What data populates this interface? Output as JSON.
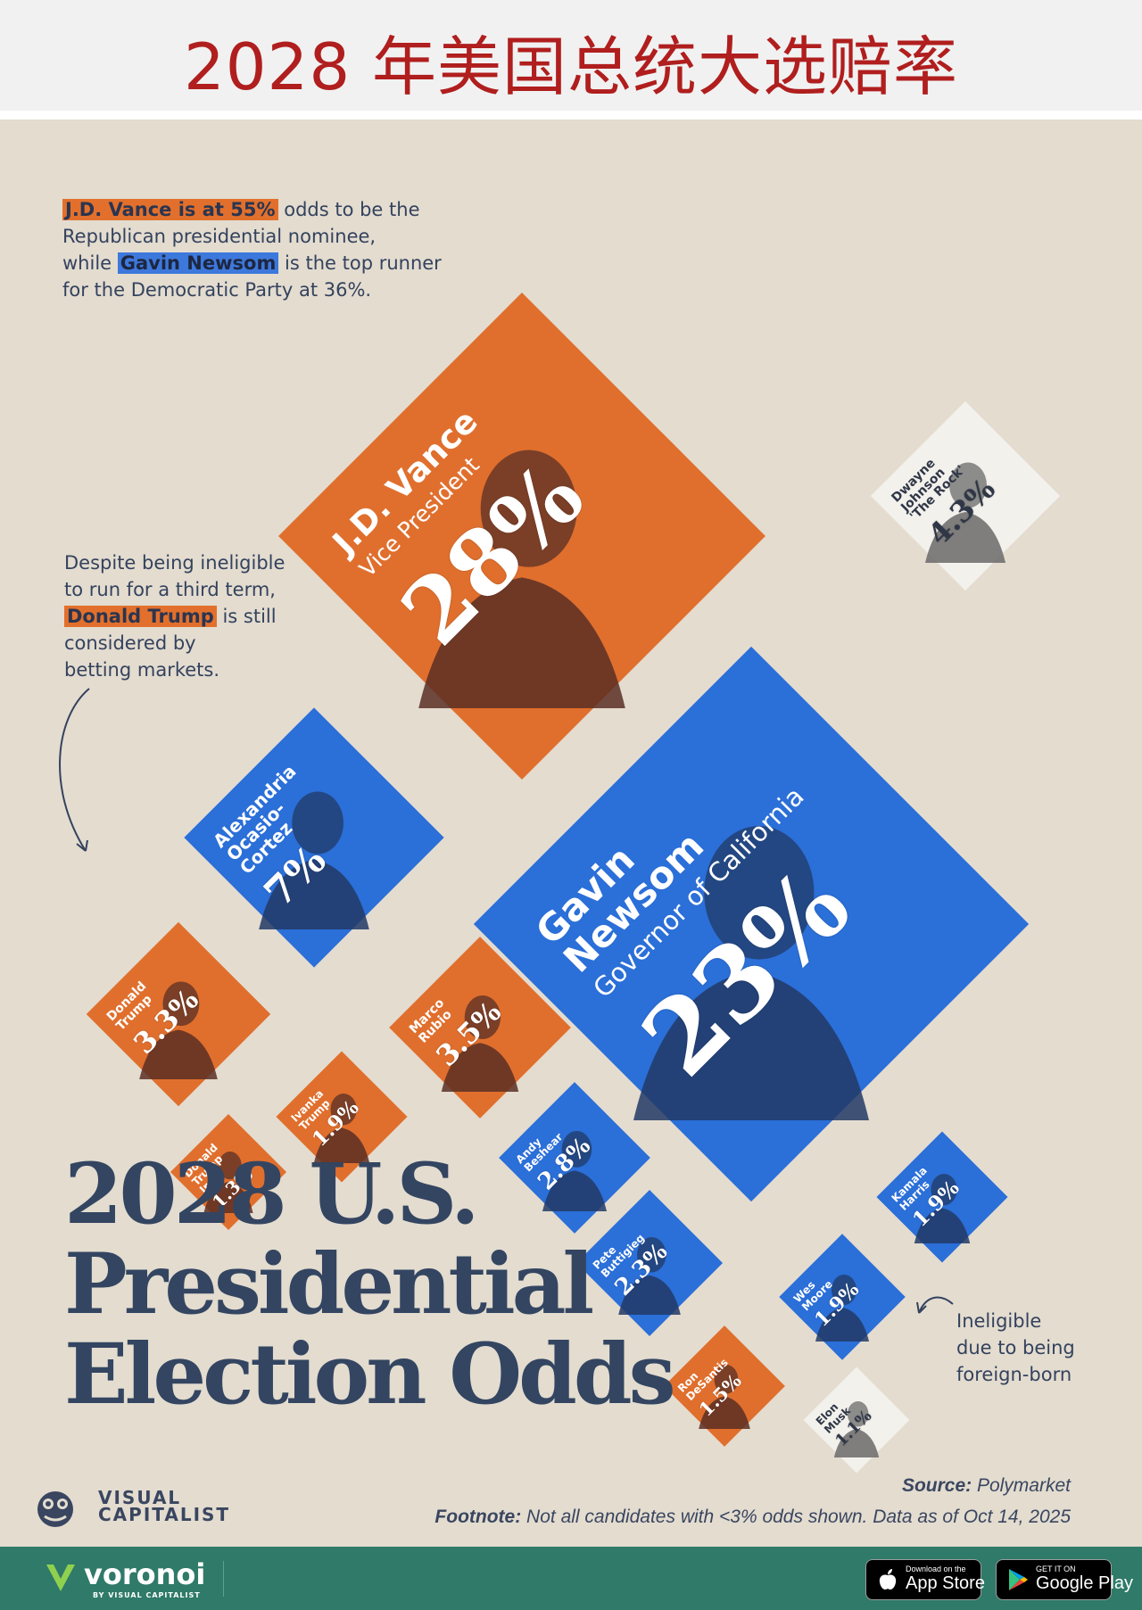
{
  "header": {
    "title": "2028 年美国总统大选赔率"
  },
  "notes": {
    "vance_note": {
      "hl": "J.D. Vance is at 55%",
      "rest1": " odds to be the",
      "line2": "Republican presidential nominee,",
      "pre3": "while ",
      "hl2": "Gavin Newsom",
      "rest3": " is the top runner",
      "line4": "for the Democratic Party at 36%."
    },
    "trump_note": {
      "line1": "Despite being ineligible",
      "line2": "to run for a third term,",
      "hl": "Donald Trump",
      "rest3": " is still",
      "line4": "considered by",
      "line5": "betting markets."
    },
    "musk_note": {
      "line1": "Ineligible",
      "line2": "due to being",
      "line3": "foreign-born"
    }
  },
  "chart_data": {
    "type": "treemap",
    "title": "2028 U.S. Presidential Election Odds",
    "title_lines": [
      "2028 U.S.",
      "Presidential",
      "Election Odds"
    ],
    "candidates": [
      {
        "name": "J.D. Vance",
        "role": "Vice President",
        "label": "28%",
        "value": 28,
        "party": "republican"
      },
      {
        "name": "Gavin Newsom",
        "role": "Governor of California",
        "label": "23%",
        "value": 23,
        "party": "democratic"
      },
      {
        "name": "Alexandria Ocasio-Cortez",
        "label": "7%",
        "value": 7,
        "party": "democratic"
      },
      {
        "name": "Dwayne Johnson 'The Rock'",
        "label": "4.3%",
        "value": 4.3,
        "party": "none"
      },
      {
        "name": "Marco Rubio",
        "label": "3.5%",
        "value": 3.5,
        "party": "republican"
      },
      {
        "name": "Donald Trump",
        "label": "3.3%",
        "value": 3.3,
        "party": "republican"
      },
      {
        "name": "Andy Beshear",
        "label": "2.8%",
        "value": 2.8,
        "party": "democratic"
      },
      {
        "name": "Pete Buttigieg",
        "label": "2.3%",
        "value": 2.3,
        "party": "democratic"
      },
      {
        "name": "Ivanka Trump",
        "label": "1.9%",
        "value": 1.9,
        "party": "republican"
      },
      {
        "name": "Wes Moore",
        "label": "1.9%",
        "value": 1.9,
        "party": "democratic"
      },
      {
        "name": "Kamala Harris",
        "label": "1.9%",
        "value": 1.9,
        "party": "democratic"
      },
      {
        "name": "Ron DeSantis",
        "label": "1.5%",
        "value": 1.5,
        "party": "republican"
      },
      {
        "name": "Donald Trump Jr.",
        "label": "1.3%",
        "value": 1.3,
        "party": "republican"
      },
      {
        "name": "Elon Musk",
        "label": "1.1%",
        "value": 1.1,
        "party": "none"
      }
    ],
    "colors": {
      "republican": "#e06f2d",
      "democratic": "#2b6fd8",
      "none": "#f3f1ec"
    }
  },
  "source": {
    "label": "Source:",
    "value": " Polymarket"
  },
  "footnote": {
    "label": "Footnote:",
    "value": " Not all candidates with <3% odds shown. Data as of Oct 14, 2025"
  },
  "brand": {
    "line1": "VISUAL",
    "line2": "CAPITALIST"
  },
  "footer": {
    "app_name": "voronoi",
    "app_sub": "BY VISUAL CAPITALIST",
    "appstore_small": "Download on the",
    "appstore_big": "App Store",
    "play_small": "GET IT ON",
    "play_big": "Google Play"
  }
}
